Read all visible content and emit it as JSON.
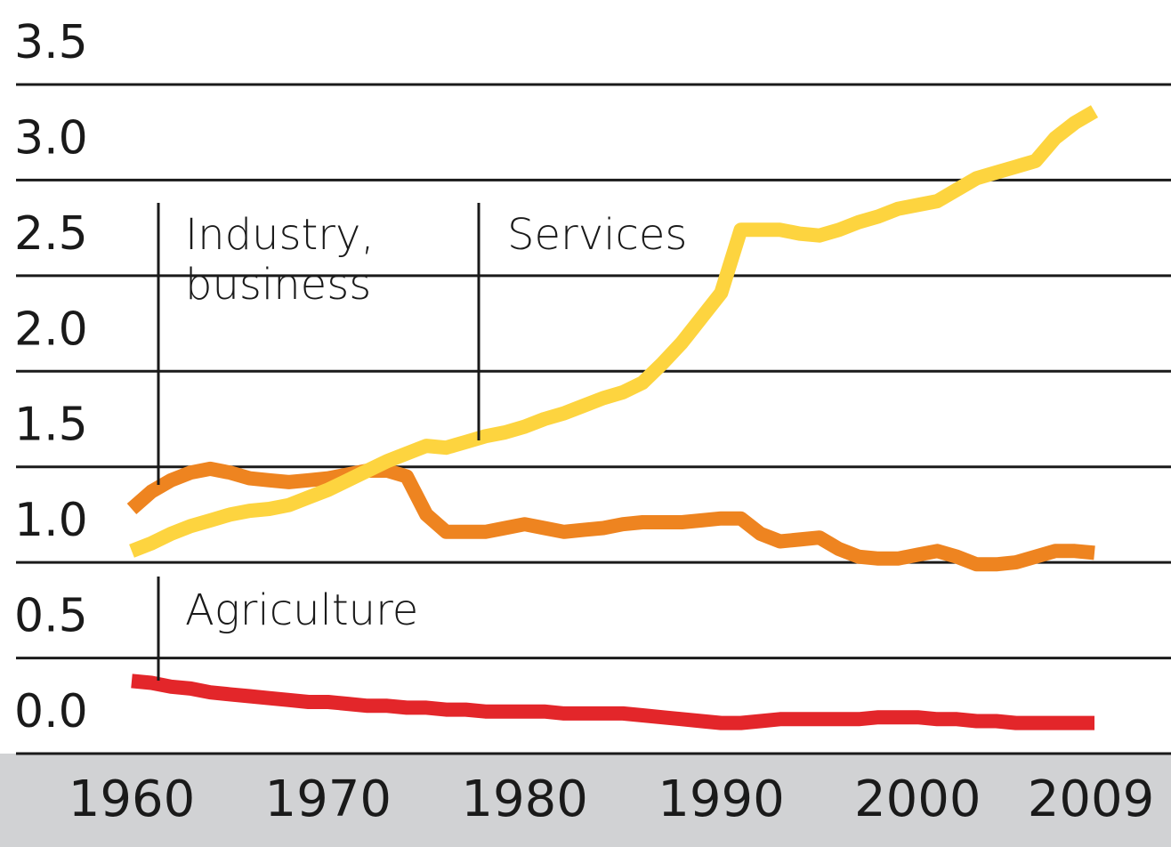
{
  "chart_data": {
    "type": "line",
    "x": [
      1960,
      1961,
      1962,
      1963,
      1964,
      1965,
      1966,
      1967,
      1968,
      1969,
      1970,
      1971,
      1972,
      1973,
      1974,
      1975,
      1976,
      1977,
      1978,
      1979,
      1980,
      1981,
      1982,
      1983,
      1984,
      1985,
      1986,
      1987,
      1988,
      1989,
      1990,
      1991,
      1992,
      1993,
      1994,
      1995,
      1996,
      1997,
      1998,
      1999,
      2000,
      2001,
      2002,
      2003,
      2004,
      2005,
      2006,
      2007,
      2008,
      2009
    ],
    "series": [
      {
        "name": "Industry, business",
        "color": "#ee8420",
        "values": [
          1.28,
          1.37,
          1.43,
          1.47,
          1.49,
          1.47,
          1.44,
          1.43,
          1.42,
          1.43,
          1.44,
          1.46,
          1.48,
          1.48,
          1.45,
          1.25,
          1.16,
          1.16,
          1.16,
          1.18,
          1.2,
          1.18,
          1.16,
          1.17,
          1.18,
          1.2,
          1.21,
          1.21,
          1.21,
          1.22,
          1.23,
          1.23,
          1.15,
          1.11,
          1.12,
          1.13,
          1.07,
          1.03,
          1.02,
          1.02,
          1.04,
          1.06,
          1.03,
          0.99,
          0.99,
          1.0,
          1.03,
          1.06,
          1.06,
          1.05
        ]
      },
      {
        "name": "Services",
        "color": "#fdd43f",
        "values": [
          1.06,
          1.1,
          1.15,
          1.19,
          1.22,
          1.25,
          1.27,
          1.28,
          1.3,
          1.34,
          1.38,
          1.43,
          1.48,
          1.53,
          1.57,
          1.61,
          1.6,
          1.63,
          1.66,
          1.68,
          1.71,
          1.75,
          1.78,
          1.82,
          1.86,
          1.89,
          1.94,
          2.04,
          2.15,
          2.28,
          2.41,
          2.74,
          2.74,
          2.74,
          2.72,
          2.71,
          2.74,
          2.78,
          2.81,
          2.85,
          2.87,
          2.89,
          2.95,
          3.01,
          3.04,
          3.07,
          3.1,
          3.22,
          3.3,
          3.36
        ]
      },
      {
        "name": "Agriculture",
        "color": "#e3262a",
        "values": [
          0.38,
          0.37,
          0.35,
          0.34,
          0.32,
          0.31,
          0.3,
          0.29,
          0.28,
          0.27,
          0.27,
          0.26,
          0.25,
          0.25,
          0.24,
          0.24,
          0.23,
          0.23,
          0.22,
          0.22,
          0.22,
          0.22,
          0.21,
          0.21,
          0.21,
          0.21,
          0.2,
          0.19,
          0.18,
          0.17,
          0.16,
          0.16,
          0.17,
          0.18,
          0.18,
          0.18,
          0.18,
          0.18,
          0.19,
          0.19,
          0.19,
          0.18,
          0.18,
          0.17,
          0.17,
          0.16,
          0.16,
          0.16,
          0.16,
          0.16
        ]
      }
    ],
    "xlim": [
      1960,
      2009
    ],
    "xticks": [
      1960,
      1970,
      1980,
      1990,
      2000,
      2009
    ],
    "ylim": [
      0,
      3.5
    ],
    "yticks": [
      {
        "value": 0,
        "label": "0.0"
      },
      0.5,
      {
        "value": 1,
        "label": "1.0"
      },
      1.5,
      {
        "value": 2,
        "label": "2.0"
      },
      2.5,
      {
        "value": 3,
        "label": "3.0"
      },
      3.5
    ],
    "grid": true
  }
}
